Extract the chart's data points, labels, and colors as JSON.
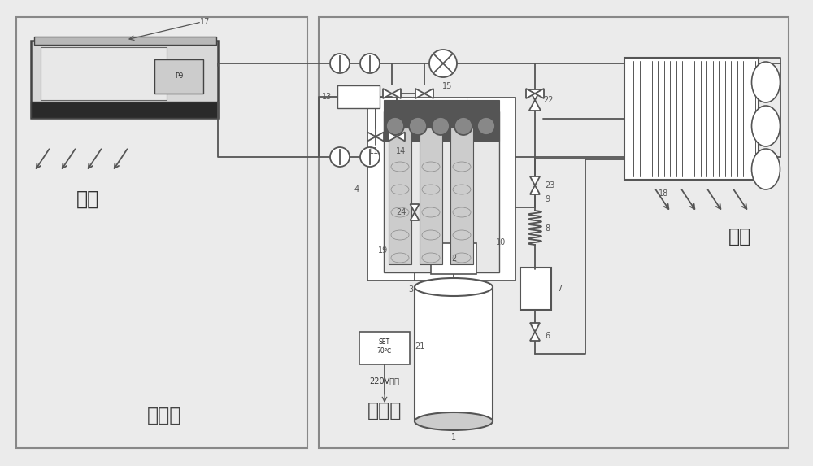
{
  "bg_color": "#ebebeb",
  "border_color": "#888888",
  "line_color": "#555555",
  "line_width": 1.3,
  "indoor_label": "室内侧",
  "outdoor_label": "室外侧",
  "heat_release_label": "放热",
  "heat_absorb_label": "吸热",
  "ac_label": "220V交流",
  "set_label": "SET\n70℃"
}
